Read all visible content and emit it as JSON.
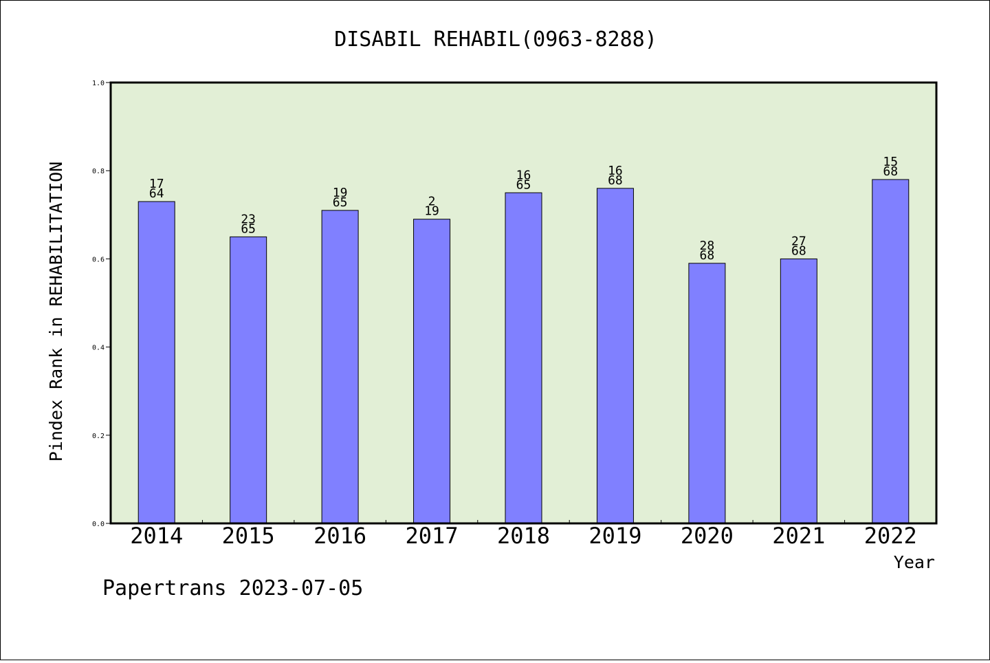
{
  "chart_data": {
    "type": "bar",
    "title": "DISABIL REHABIL(0963-8288)",
    "xlabel": "Year",
    "ylabel": "Pindex Rank in REHABILITATION",
    "ylim": [
      0,
      1.0
    ],
    "yticks": [
      "0.0",
      "0.2",
      "0.4",
      "0.6",
      "0.8",
      "1.0"
    ],
    "categories": [
      "2014",
      "2015",
      "2016",
      "2017",
      "2018",
      "2019",
      "2020",
      "2021",
      "2022"
    ],
    "values": [
      0.73,
      0.65,
      0.71,
      0.69,
      0.75,
      0.76,
      0.59,
      0.6,
      0.78
    ],
    "rank": [
      "17",
      "23",
      "19",
      "2",
      "16",
      "16",
      "28",
      "27",
      "15"
    ],
    "total": [
      "64",
      "65",
      "65",
      "19",
      "65",
      "68",
      "68",
      "68",
      "68"
    ],
    "grid": false,
    "bar_color": "#8080ff",
    "plot_background": "#e2efd6"
  },
  "footer": {
    "text": "Papertrans 2023-07-05"
  }
}
